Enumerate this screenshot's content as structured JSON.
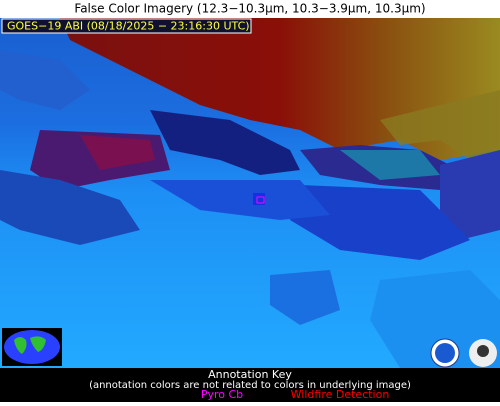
{
  "header": {
    "title": "False Color Imagery (12.3−10.3µm, 10.3−3.9µm, 10.3µm)"
  },
  "image": {
    "label": "GOES−19 ABI (08/18/2025 − 23:16:30 UTC)"
  },
  "annotation_key": {
    "title": "Annotation Key",
    "note": "(annotation colors are not related to colors in underlying image)",
    "items": [
      {
        "label": "Pyro Cb",
        "color": "#ff00ff"
      },
      {
        "label": "Wildfire Detection",
        "color": "#ff0000"
      }
    ]
  }
}
